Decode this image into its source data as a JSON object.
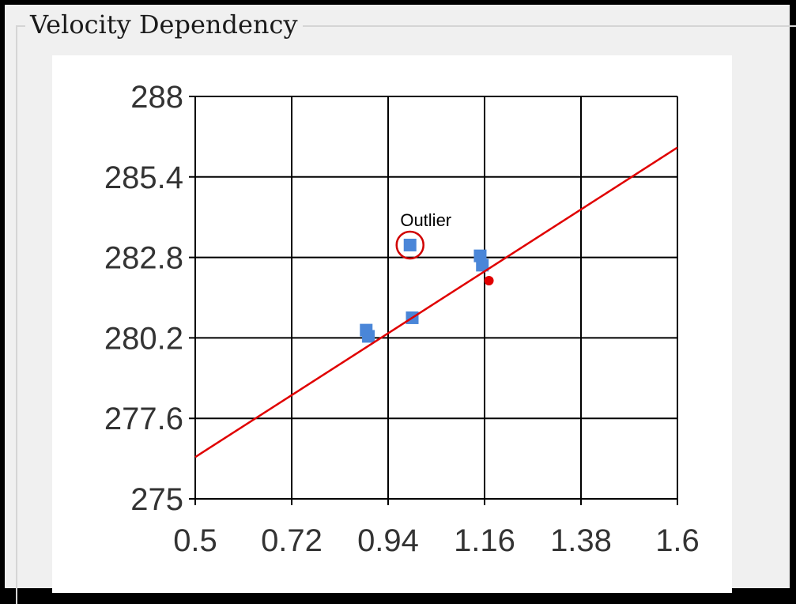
{
  "window": {
    "group_title": "Velocity Dependency"
  },
  "chart_data": {
    "type": "scatter",
    "title": "",
    "xlabel": "",
    "ylabel": "",
    "xlim": [
      0.5,
      1.6
    ],
    "ylim": [
      275,
      288
    ],
    "xticks": [
      "0.5",
      "0.72",
      "0.94",
      "1.16",
      "1.38",
      "1.6"
    ],
    "yticks": [
      "288",
      "285.4",
      "282.8",
      "280.2",
      "277.6",
      "275"
    ],
    "grid": true,
    "series": [
      {
        "marker": "square",
        "color": "#4a86d8",
        "points": [
          {
            "x": 0.89,
            "y": 280.45
          },
          {
            "x": 0.895,
            "y": 280.25
          },
          {
            "x": 0.99,
            "y": 283.2
          },
          {
            "x": 0.995,
            "y": 280.85
          },
          {
            "x": 1.15,
            "y": 282.85
          },
          {
            "x": 1.155,
            "y": 282.55
          }
        ]
      },
      {
        "marker": "circle",
        "color": "#e00000",
        "points": [
          {
            "x": 1.17,
            "y": 282.05
          }
        ]
      }
    ],
    "trendline": {
      "color": "#e00000",
      "from": {
        "x": 0.5,
        "y": 276.35
      },
      "to": {
        "x": 1.6,
        "y": 286.35
      }
    },
    "annotations": [
      {
        "text": "Outlier",
        "x": 0.99,
        "y": 283.2
      }
    ]
  }
}
